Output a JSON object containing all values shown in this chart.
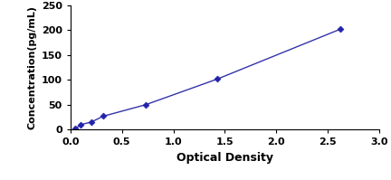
{
  "x": [
    0.05,
    0.1,
    0.2,
    0.32,
    0.73,
    1.43,
    2.62
  ],
  "y": [
    2,
    10,
    15,
    27,
    50,
    102,
    202
  ],
  "line_color": "#3333AA",
  "marker": "D",
  "marker_size": 3.5,
  "marker_color": "#2222AA",
  "line_width": 1.0,
  "xlabel": "Optical Density",
  "ylabel": "Concentration(pg/mL)",
  "xlim": [
    0,
    3
  ],
  "ylim": [
    0,
    250
  ],
  "xticks": [
    0,
    0.5,
    1,
    1.5,
    2,
    2.5,
    3
  ],
  "yticks": [
    0,
    50,
    100,
    150,
    200,
    250
  ],
  "xlabel_fontsize": 9,
  "ylabel_fontsize": 8,
  "tick_fontsize": 8,
  "background_color": "#ffffff",
  "figure_bg": "#ffffff"
}
